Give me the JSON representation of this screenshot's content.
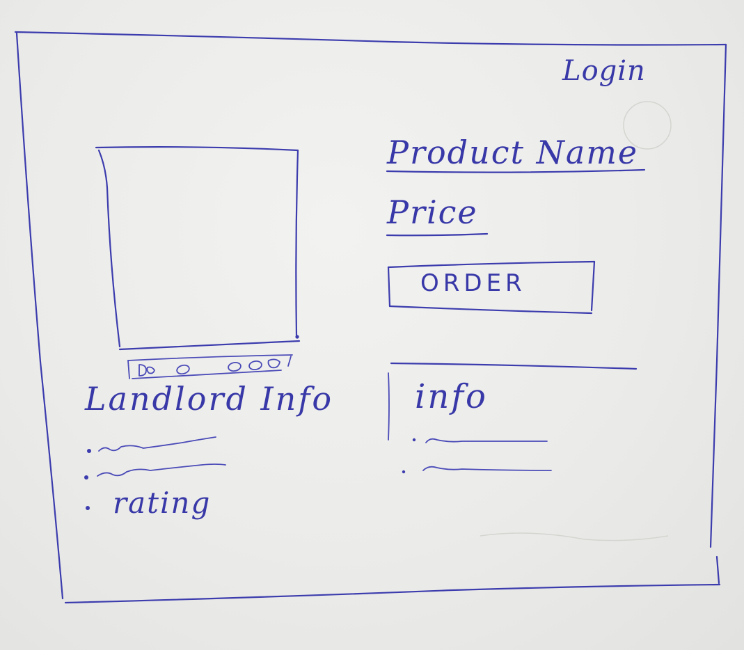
{
  "header": {
    "login_label": "Login"
  },
  "product": {
    "name": "Product Name",
    "price_label": "Price",
    "order_label": "ORDER"
  },
  "gallery": {
    "thumbnail_count": 5
  },
  "landlord": {
    "title": "Landlord Info",
    "rating_label": "rating"
  },
  "info": {
    "title": "info"
  },
  "colors": {
    "ink": "#3c3cae",
    "paper": "#ebebe9"
  }
}
